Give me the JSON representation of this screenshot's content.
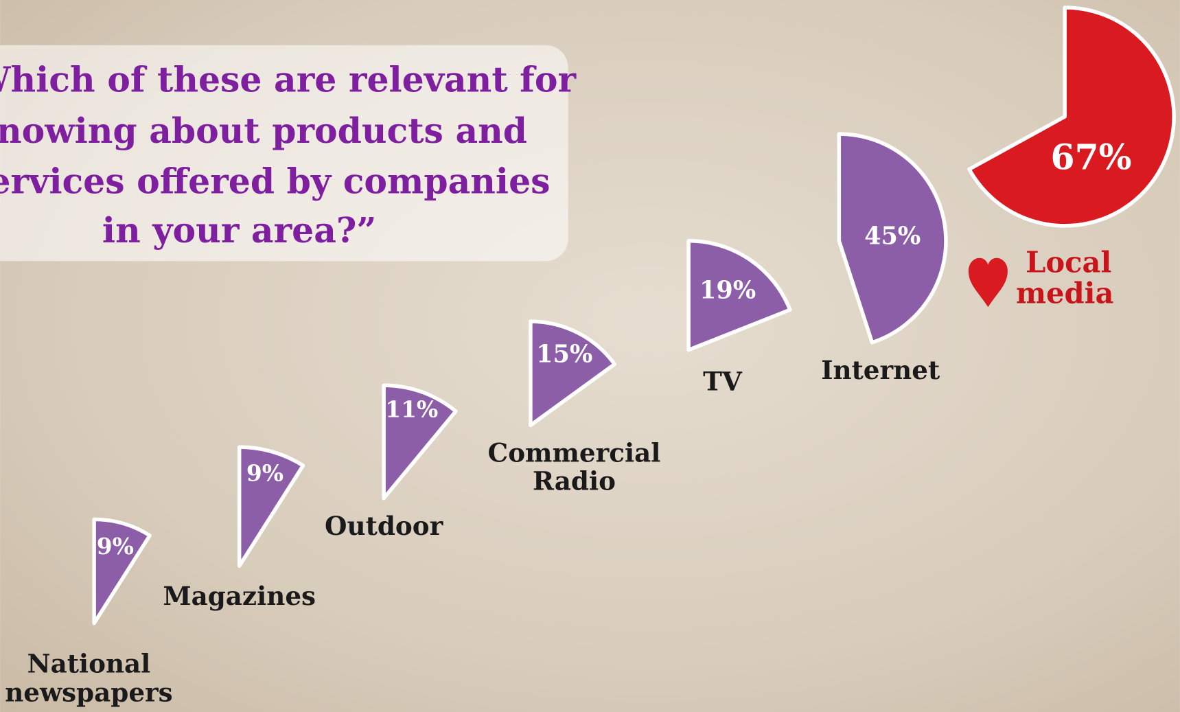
{
  "chart_data": {
    "type": "sector",
    "title": [
      "“Which of these are relevant for",
      "knowing about products and",
      "services offered by companies",
      "in your area?”"
    ],
    "categories": [
      [
        "National",
        "newspapers"
      ],
      [
        "Magazines"
      ],
      [
        "Outdoor"
      ],
      [
        "Commercial",
        "Radio"
      ],
      [
        "TV"
      ],
      [
        "Internet"
      ],
      [
        "Local",
        "media"
      ]
    ],
    "values": [
      9,
      9,
      11,
      15,
      19,
      45,
      67
    ],
    "value_labels": [
      "9%",
      "9%",
      "11%",
      "15%",
      "19%",
      "45%",
      "67%"
    ],
    "colors": [
      "#8c5ea8",
      "#8c5ea8",
      "#8c5ea8",
      "#8c5ea8",
      "#8c5ea8",
      "#8c5ea8",
      "#d91a20"
    ]
  }
}
